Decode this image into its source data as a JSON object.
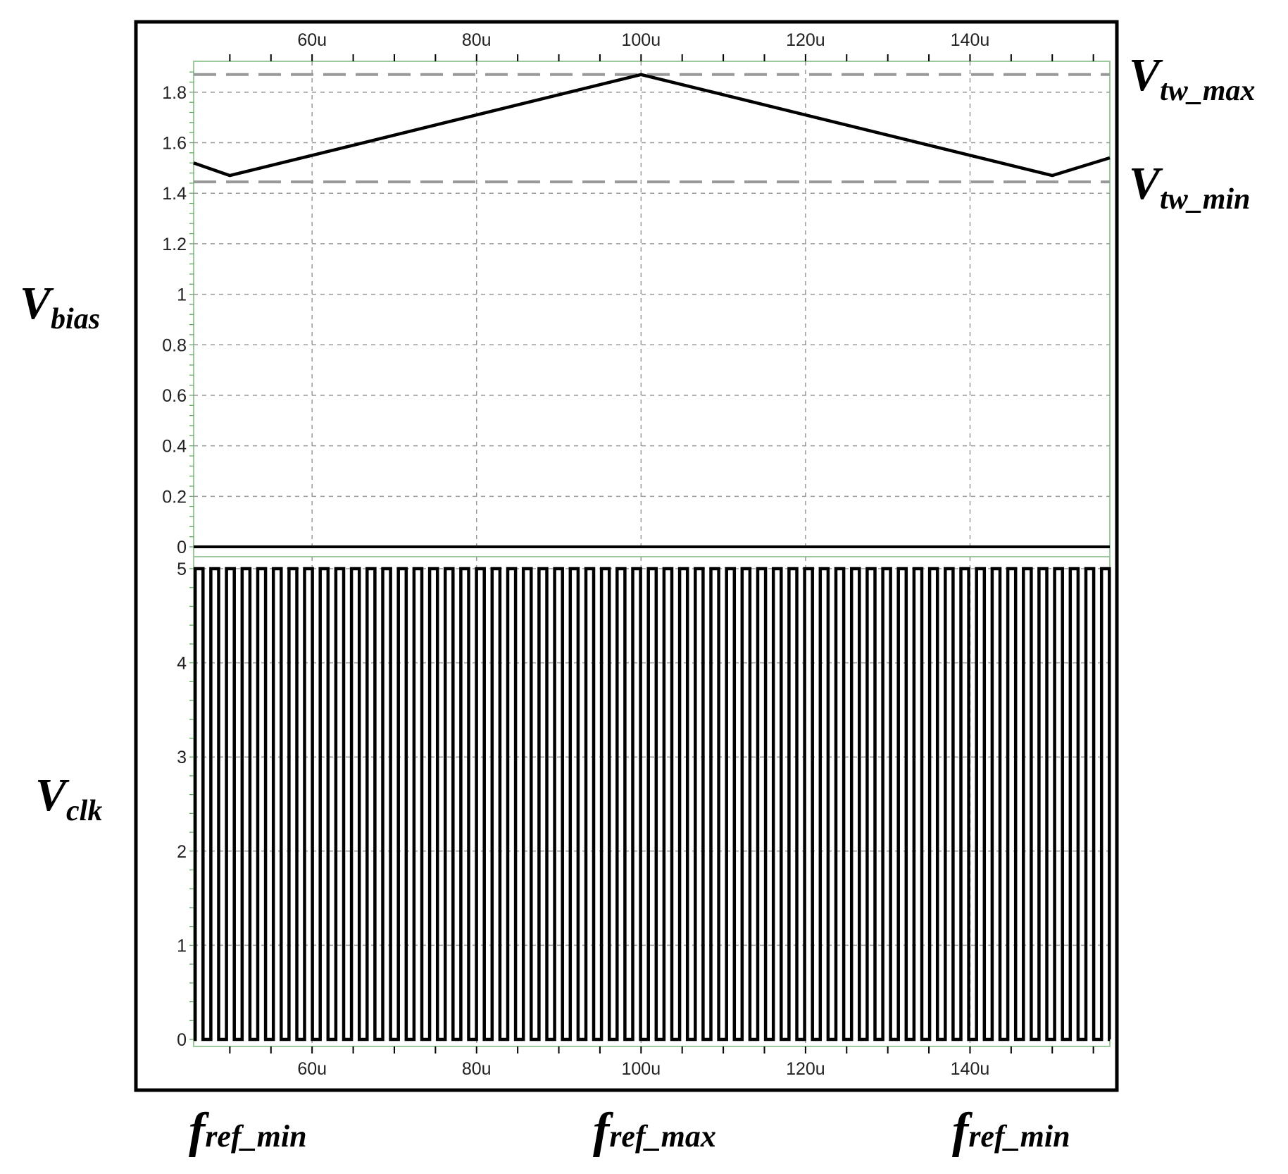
{
  "chart_data": [
    {
      "type": "line",
      "name": "Vbias panel",
      "label": {
        "main": "V",
        "sub": "bias"
      },
      "x_unit": "s",
      "xlim": [
        4.56e-05,
        0.000157
      ],
      "ylim": [
        0,
        1.9
      ],
      "y_ticks": [
        0,
        0.2,
        0.4,
        0.6,
        0.8,
        1,
        1.2,
        1.4,
        1.6,
        1.8
      ],
      "y_tick_labels": [
        "0",
        "0.2",
        "0.4",
        "0.6",
        "0.8",
        "1",
        "1.2",
        "1.4",
        "1.6",
        "1.8"
      ],
      "x_ticks": [
        6e-05,
        8e-05,
        0.0001,
        0.00012,
        0.00014
      ],
      "x_tick_labels": [
        "60u",
        "80u",
        "100u",
        "120u",
        "140u"
      ],
      "grid": true,
      "series": [
        {
          "x": [
            4.56e-05,
            5e-05,
            0.0001,
            0.00015,
            0.000157
          ],
          "y": [
            1.52,
            1.47,
            1.87,
            1.47,
            1.54
          ]
        }
      ],
      "reference_lines": [
        {
          "y": 1.87,
          "label": {
            "main": "V",
            "sub": "tw_max"
          }
        },
        {
          "y": 1.445,
          "label": {
            "main": "V",
            "sub": "tw_min"
          }
        }
      ]
    },
    {
      "type": "line",
      "name": "Vclk panel",
      "label": {
        "main": "V",
        "sub": "clk"
      },
      "x_unit": "s",
      "xlim": [
        4.56e-05,
        0.000157
      ],
      "ylim": [
        -0.1,
        5.1
      ],
      "y_ticks": [
        0,
        1,
        2,
        3,
        4,
        5
      ],
      "y_tick_labels": [
        "0",
        "1",
        "2",
        "3",
        "4",
        "5"
      ],
      "x_ticks": [
        6e-05,
        8e-05,
        0.0001,
        0.00012,
        0.00014
      ],
      "x_tick_labels": [
        "60u",
        "80u",
        "100u",
        "120u",
        "140u"
      ],
      "grid": true,
      "signal": {
        "shape": "square",
        "low": 0,
        "high": 5,
        "period": 1.9e-06,
        "duty": 0.5
      }
    }
  ],
  "bottom_labels": [
    {
      "main": "f",
      "sub": "ref_min"
    },
    {
      "main": "f",
      "sub": "ref_max"
    },
    {
      "main": "f",
      "sub": "ref_min"
    }
  ]
}
